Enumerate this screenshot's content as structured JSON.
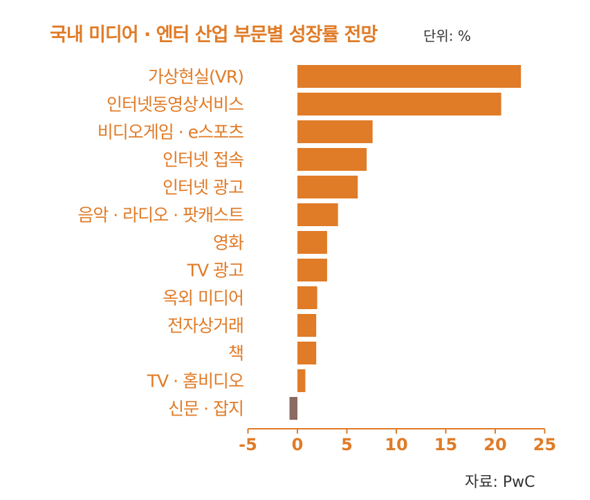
{
  "chart_data": {
    "type": "bar",
    "orientation": "horizontal",
    "title": "국내 미디어 · 엔터 산업 부문별 성장률 전망",
    "unit": "단위: %",
    "source": "자료: PwC",
    "categories": [
      "가상현실(VR)",
      "인터넷동영상서비스",
      "비디오게임 · e스포츠",
      "인터넷 접속",
      "인터넷 광고",
      "음악 · 라디오 · 팟캐스트",
      "영화",
      "TV 광고",
      "옥외 미디어",
      "전자상거래",
      "책",
      "TV · 홈비디오",
      "신문 · 잡지"
    ],
    "values": [
      22.6,
      20.6,
      7.6,
      7.0,
      6.1,
      4.1,
      3.0,
      3.0,
      2.0,
      1.9,
      1.9,
      0.8,
      -0.8
    ],
    "xlim": [
      -5,
      25
    ],
    "xticks": [
      "-5",
      "0",
      "5",
      "10",
      "15",
      "20",
      "25"
    ],
    "xtick_values": [
      -5,
      0,
      5,
      10,
      15,
      20,
      25
    ],
    "colors": {
      "positive": "#e07b27",
      "negative": "#8b6a62",
      "axis": "#e07b27",
      "text": "#e07b27"
    },
    "grid": false,
    "legend": "none"
  }
}
